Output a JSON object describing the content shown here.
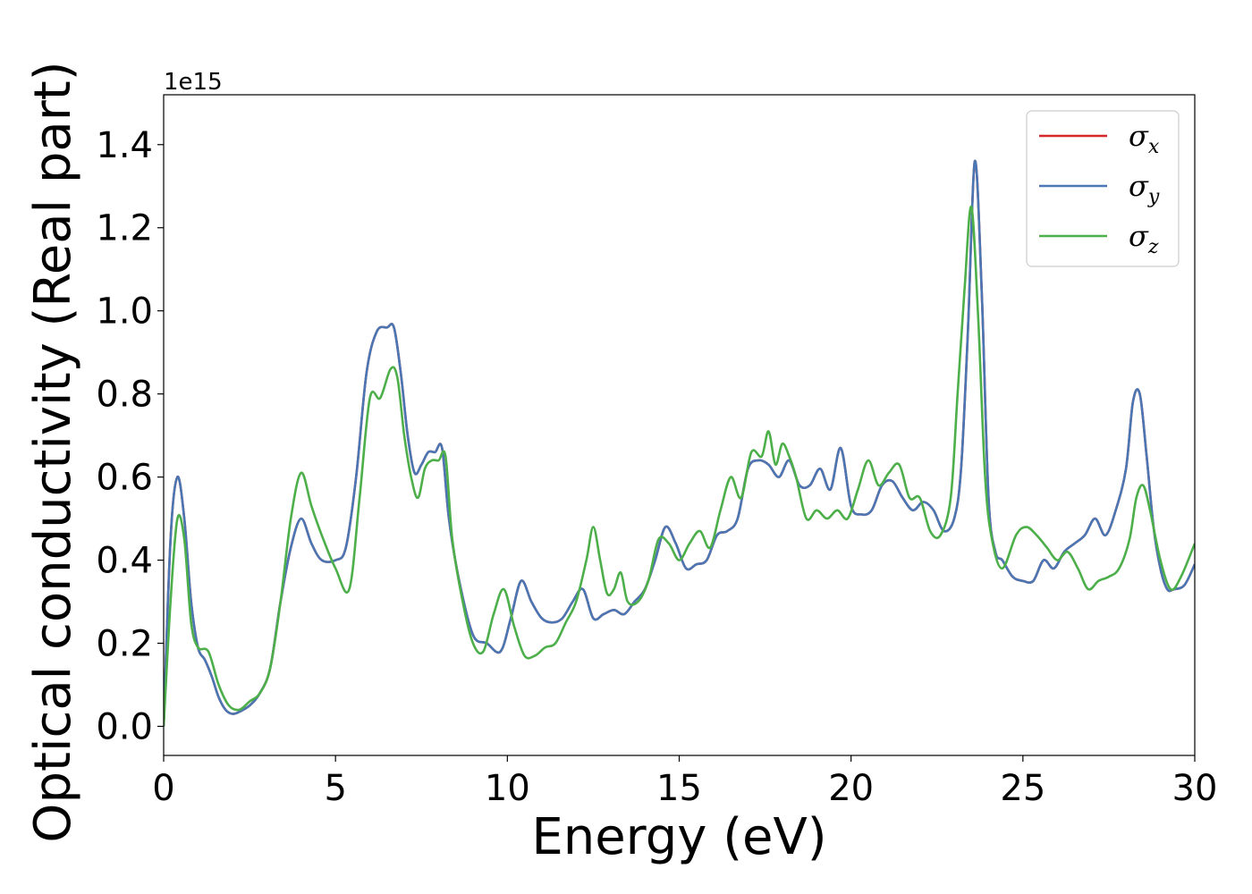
{
  "chart_data": {
    "type": "line",
    "title": "",
    "xlabel": "Energy (eV)",
    "ylabel": "Optical conductivity (Real part)",
    "y_offset_text": "1e15",
    "xlim": [
      0,
      30
    ],
    "ylim": [
      -0.07,
      1.52
    ],
    "xticks": [
      0,
      5,
      10,
      15,
      20,
      25,
      30
    ],
    "xtick_labels": [
      "0",
      "5",
      "10",
      "15",
      "20",
      "25",
      "30"
    ],
    "yticks": [
      0.0,
      0.2,
      0.4,
      0.6,
      0.8,
      1.0,
      1.2,
      1.4
    ],
    "ytick_labels": [
      "0.0",
      "0.2",
      "0.4",
      "0.6",
      "0.8",
      "1.0",
      "1.2",
      "1.4"
    ],
    "grid": false,
    "legend_position": "top-right",
    "series": [
      {
        "name": "σx",
        "symbol": "σ",
        "sub": "x",
        "color": "#d62728",
        "x": [
          0,
          0.2,
          0.4,
          0.6,
          0.8,
          1.0,
          1.2,
          1.4,
          1.6,
          1.8,
          2.0,
          2.2,
          2.5,
          2.8,
          3.1,
          3.4,
          3.7,
          4.0,
          4.3,
          4.6,
          5.0,
          5.3,
          5.6,
          5.9,
          6.2,
          6.5,
          6.7,
          6.9,
          7.1,
          7.3,
          7.5,
          7.7,
          7.9,
          8.1,
          8.3,
          8.6,
          9.0,
          9.4,
          9.8,
          10.1,
          10.4,
          10.7,
          11.0,
          11.3,
          11.6,
          11.9,
          12.2,
          12.5,
          12.8,
          13.1,
          13.4,
          13.7,
          14.0,
          14.3,
          14.6,
          14.9,
          15.2,
          15.5,
          15.8,
          16.1,
          16.4,
          16.7,
          17.0,
          17.3,
          17.6,
          17.9,
          18.2,
          18.5,
          18.8,
          19.1,
          19.4,
          19.7,
          20.0,
          20.3,
          20.6,
          20.9,
          21.2,
          21.5,
          21.8,
          22.1,
          22.4,
          22.7,
          23.0,
          23.2,
          23.4,
          23.6,
          23.8,
          24.0,
          24.2,
          24.4,
          24.7,
          25.0,
          25.3,
          25.6,
          25.9,
          26.2,
          26.5,
          26.8,
          27.1,
          27.4,
          27.7,
          28.0,
          28.2,
          28.4,
          28.6,
          28.8,
          29.0,
          29.2,
          29.4,
          29.7,
          30.0
        ],
        "y": [
          0.0,
          0.45,
          0.6,
          0.5,
          0.3,
          0.19,
          0.16,
          0.12,
          0.07,
          0.04,
          0.03,
          0.035,
          0.05,
          0.08,
          0.14,
          0.3,
          0.43,
          0.5,
          0.44,
          0.4,
          0.4,
          0.43,
          0.6,
          0.85,
          0.95,
          0.96,
          0.96,
          0.85,
          0.7,
          0.61,
          0.63,
          0.66,
          0.66,
          0.67,
          0.5,
          0.35,
          0.22,
          0.2,
          0.18,
          0.26,
          0.35,
          0.3,
          0.26,
          0.25,
          0.26,
          0.3,
          0.33,
          0.26,
          0.27,
          0.28,
          0.27,
          0.3,
          0.33,
          0.4,
          0.48,
          0.44,
          0.38,
          0.39,
          0.4,
          0.46,
          0.47,
          0.5,
          0.62,
          0.64,
          0.63,
          0.6,
          0.64,
          0.58,
          0.58,
          0.62,
          0.57,
          0.67,
          0.53,
          0.51,
          0.52,
          0.58,
          0.59,
          0.55,
          0.52,
          0.54,
          0.52,
          0.47,
          0.5,
          0.62,
          0.95,
          1.36,
          1.05,
          0.55,
          0.42,
          0.4,
          0.36,
          0.35,
          0.35,
          0.4,
          0.38,
          0.42,
          0.44,
          0.46,
          0.5,
          0.46,
          0.52,
          0.62,
          0.78,
          0.8,
          0.65,
          0.48,
          0.38,
          0.33,
          0.33,
          0.34,
          0.39
        ]
      },
      {
        "name": "σy",
        "symbol": "σ",
        "sub": "y",
        "color": "#4a77b4",
        "x": [
          0,
          0.2,
          0.4,
          0.6,
          0.8,
          1.0,
          1.2,
          1.4,
          1.6,
          1.8,
          2.0,
          2.2,
          2.5,
          2.8,
          3.1,
          3.4,
          3.7,
          4.0,
          4.3,
          4.6,
          5.0,
          5.3,
          5.6,
          5.9,
          6.2,
          6.5,
          6.7,
          6.9,
          7.1,
          7.3,
          7.5,
          7.7,
          7.9,
          8.1,
          8.3,
          8.6,
          9.0,
          9.4,
          9.8,
          10.1,
          10.4,
          10.7,
          11.0,
          11.3,
          11.6,
          11.9,
          12.2,
          12.5,
          12.8,
          13.1,
          13.4,
          13.7,
          14.0,
          14.3,
          14.6,
          14.9,
          15.2,
          15.5,
          15.8,
          16.1,
          16.4,
          16.7,
          17.0,
          17.3,
          17.6,
          17.9,
          18.2,
          18.5,
          18.8,
          19.1,
          19.4,
          19.7,
          20.0,
          20.3,
          20.6,
          20.9,
          21.2,
          21.5,
          21.8,
          22.1,
          22.4,
          22.7,
          23.0,
          23.2,
          23.4,
          23.6,
          23.8,
          24.0,
          24.2,
          24.4,
          24.7,
          25.0,
          25.3,
          25.6,
          25.9,
          26.2,
          26.5,
          26.8,
          27.1,
          27.4,
          27.7,
          28.0,
          28.2,
          28.4,
          28.6,
          28.8,
          29.0,
          29.2,
          29.4,
          29.7,
          30.0
        ],
        "y": [
          0.0,
          0.45,
          0.6,
          0.5,
          0.3,
          0.19,
          0.16,
          0.12,
          0.07,
          0.04,
          0.03,
          0.035,
          0.05,
          0.08,
          0.14,
          0.3,
          0.43,
          0.5,
          0.44,
          0.4,
          0.4,
          0.43,
          0.6,
          0.85,
          0.95,
          0.96,
          0.96,
          0.85,
          0.7,
          0.61,
          0.63,
          0.66,
          0.66,
          0.67,
          0.5,
          0.35,
          0.22,
          0.2,
          0.18,
          0.26,
          0.35,
          0.3,
          0.26,
          0.25,
          0.26,
          0.3,
          0.33,
          0.26,
          0.27,
          0.28,
          0.27,
          0.3,
          0.33,
          0.4,
          0.48,
          0.44,
          0.38,
          0.39,
          0.4,
          0.46,
          0.47,
          0.5,
          0.62,
          0.64,
          0.63,
          0.6,
          0.64,
          0.58,
          0.58,
          0.62,
          0.57,
          0.67,
          0.53,
          0.51,
          0.52,
          0.58,
          0.59,
          0.55,
          0.52,
          0.54,
          0.52,
          0.47,
          0.5,
          0.62,
          0.95,
          1.36,
          1.05,
          0.55,
          0.42,
          0.4,
          0.36,
          0.35,
          0.35,
          0.4,
          0.38,
          0.42,
          0.44,
          0.46,
          0.5,
          0.46,
          0.52,
          0.62,
          0.78,
          0.8,
          0.65,
          0.48,
          0.38,
          0.33,
          0.33,
          0.34,
          0.39
        ]
      },
      {
        "name": "σz",
        "symbol": "σ",
        "sub": "z",
        "color": "#4daf4a",
        "x": [
          0,
          0.2,
          0.4,
          0.6,
          0.8,
          1.0,
          1.3,
          1.6,
          1.9,
          2.2,
          2.5,
          2.8,
          3.1,
          3.4,
          3.7,
          4.0,
          4.3,
          4.6,
          5.0,
          5.4,
          5.7,
          6.0,
          6.3,
          6.6,
          6.8,
          7.0,
          7.2,
          7.4,
          7.6,
          7.8,
          8.0,
          8.2,
          8.4,
          8.7,
          9.0,
          9.3,
          9.6,
          9.9,
          10.2,
          10.5,
          10.8,
          11.1,
          11.4,
          11.7,
          12.0,
          12.3,
          12.5,
          12.7,
          12.9,
          13.1,
          13.3,
          13.5,
          13.8,
          14.1,
          14.4,
          14.7,
          15.0,
          15.3,
          15.6,
          15.9,
          16.2,
          16.5,
          16.8,
          17.1,
          17.4,
          17.6,
          17.8,
          18.0,
          18.2,
          18.4,
          18.7,
          19.0,
          19.3,
          19.6,
          19.9,
          20.2,
          20.5,
          20.8,
          21.1,
          21.4,
          21.7,
          22.0,
          22.3,
          22.6,
          22.9,
          23.1,
          23.3,
          23.5,
          23.7,
          23.9,
          24.1,
          24.4,
          24.8,
          25.1,
          25.4,
          25.7,
          26.0,
          26.3,
          26.6,
          26.9,
          27.2,
          27.5,
          27.8,
          28.1,
          28.3,
          28.5,
          28.7,
          29.0,
          29.3,
          29.6,
          30.0
        ],
        "y": [
          0.0,
          0.3,
          0.5,
          0.45,
          0.25,
          0.19,
          0.18,
          0.1,
          0.05,
          0.04,
          0.06,
          0.08,
          0.14,
          0.3,
          0.5,
          0.61,
          0.53,
          0.46,
          0.38,
          0.33,
          0.55,
          0.79,
          0.79,
          0.86,
          0.84,
          0.7,
          0.6,
          0.55,
          0.62,
          0.64,
          0.64,
          0.65,
          0.45,
          0.3,
          0.2,
          0.18,
          0.27,
          0.33,
          0.24,
          0.17,
          0.17,
          0.19,
          0.2,
          0.25,
          0.3,
          0.4,
          0.48,
          0.4,
          0.32,
          0.33,
          0.37,
          0.3,
          0.3,
          0.35,
          0.45,
          0.44,
          0.4,
          0.44,
          0.47,
          0.43,
          0.52,
          0.6,
          0.55,
          0.66,
          0.65,
          0.71,
          0.63,
          0.68,
          0.65,
          0.6,
          0.5,
          0.52,
          0.5,
          0.52,
          0.5,
          0.57,
          0.64,
          0.58,
          0.61,
          0.63,
          0.55,
          0.55,
          0.47,
          0.46,
          0.55,
          0.8,
          1.05,
          1.25,
          0.98,
          0.6,
          0.45,
          0.38,
          0.46,
          0.48,
          0.46,
          0.43,
          0.4,
          0.42,
          0.38,
          0.33,
          0.35,
          0.36,
          0.38,
          0.45,
          0.55,
          0.58,
          0.52,
          0.4,
          0.33,
          0.36,
          0.44
        ]
      }
    ]
  }
}
